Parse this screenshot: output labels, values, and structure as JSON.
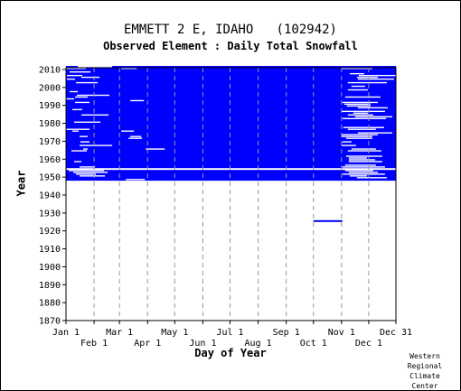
{
  "chart_data": {
    "type": "heatmap",
    "title": "EMMETT 2 E, IDAHO   (102942)",
    "subtitle": "Observed Element : Daily Total Snowfall",
    "xlabel": "Day of Year",
    "ylabel": "Year",
    "x_ticks_top_row": [
      "Jan 1",
      "Mar 1",
      "May 1",
      "Jul 1",
      "Sep 1",
      "Nov 1",
      "Dec 31"
    ],
    "x_ticks_bottom_row": [
      "Feb 1",
      "Apr 1",
      "Jun 1",
      "Aug 1",
      "Oct 1",
      "Dec 1"
    ],
    "xlim": [
      1,
      365
    ],
    "ylim": [
      1870,
      2011
    ],
    "y_ticks": [
      1870,
      1880,
      1890,
      1900,
      1910,
      1920,
      1930,
      1940,
      1950,
      1960,
      1970,
      1980,
      1990,
      2000,
      2010
    ],
    "grid": true,
    "fill_color": "#0000ff",
    "legend": "none",
    "observed_periods": [
      {
        "year_start": 1948,
        "year_end": 2011,
        "day_start": 1,
        "day_end": 365,
        "coverage": "nearly complete, with scattered missing days mainly Jan–Feb and Nov–Dec"
      },
      {
        "year_start": 1925,
        "year_end": 1925,
        "day_start": 274,
        "day_end": 305,
        "coverage": "Oct only"
      }
    ],
    "missing_years": [
      1954
    ]
  },
  "credit": [
    "Western",
    "Regional",
    "Climate",
    "Center"
  ]
}
